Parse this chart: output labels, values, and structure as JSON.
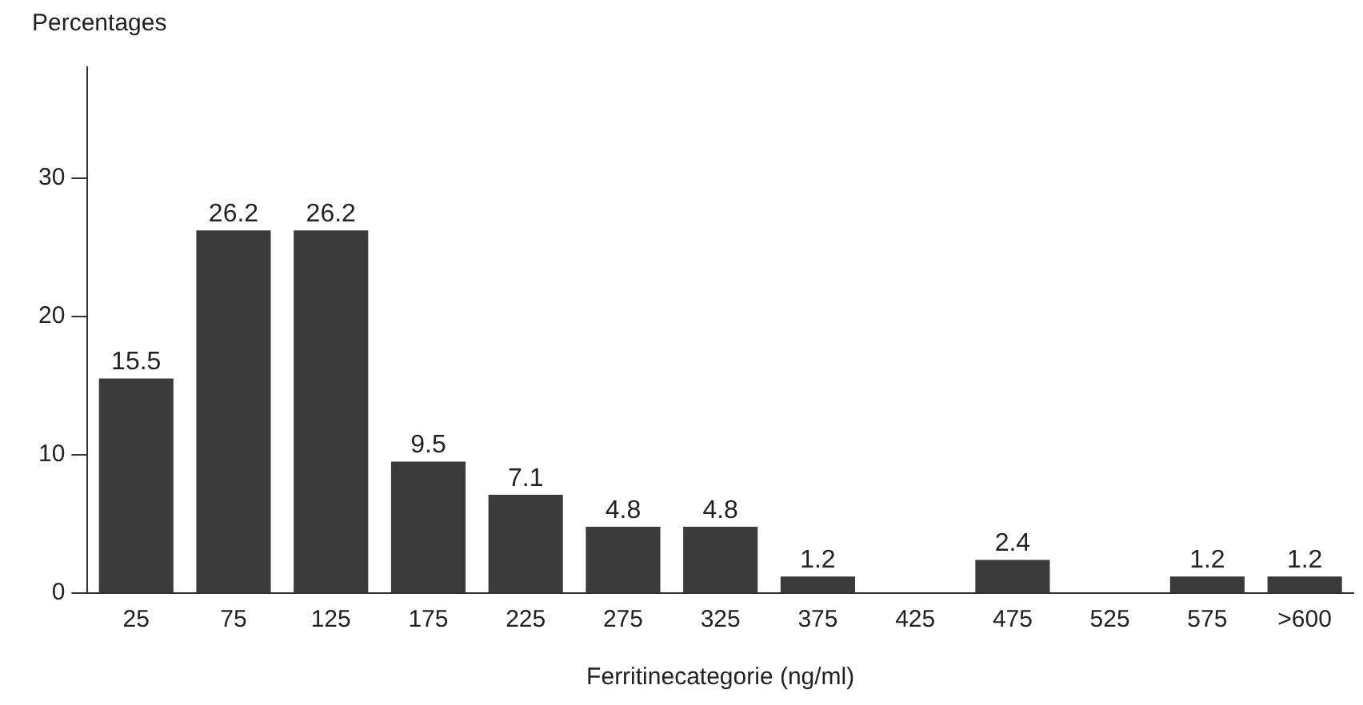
{
  "chart_data": {
    "type": "bar",
    "ylabel": "Percentages",
    "xlabel": "Ferritinecategorie (ng/ml)",
    "categories": [
      "25",
      "75",
      "125",
      "175",
      "225",
      "275",
      "325",
      "375",
      "425",
      "475",
      "525",
      "575",
      ">600"
    ],
    "values": [
      15.5,
      26.2,
      26.2,
      9.5,
      7.1,
      4.8,
      4.8,
      1.2,
      0,
      2.4,
      0,
      1.2,
      1.2
    ],
    "value_labels": [
      "15.5",
      "26.2",
      "26.2",
      "9.5",
      "7.1",
      "4.8",
      "4.8",
      "1.2",
      null,
      "2.4",
      null,
      "1.2",
      "1.2"
    ],
    "color": "#3b3b3b",
    "ylim": [
      0,
      38
    ],
    "yticks": [
      0,
      10,
      20,
      30
    ],
    "grid": false,
    "legend": false
  }
}
